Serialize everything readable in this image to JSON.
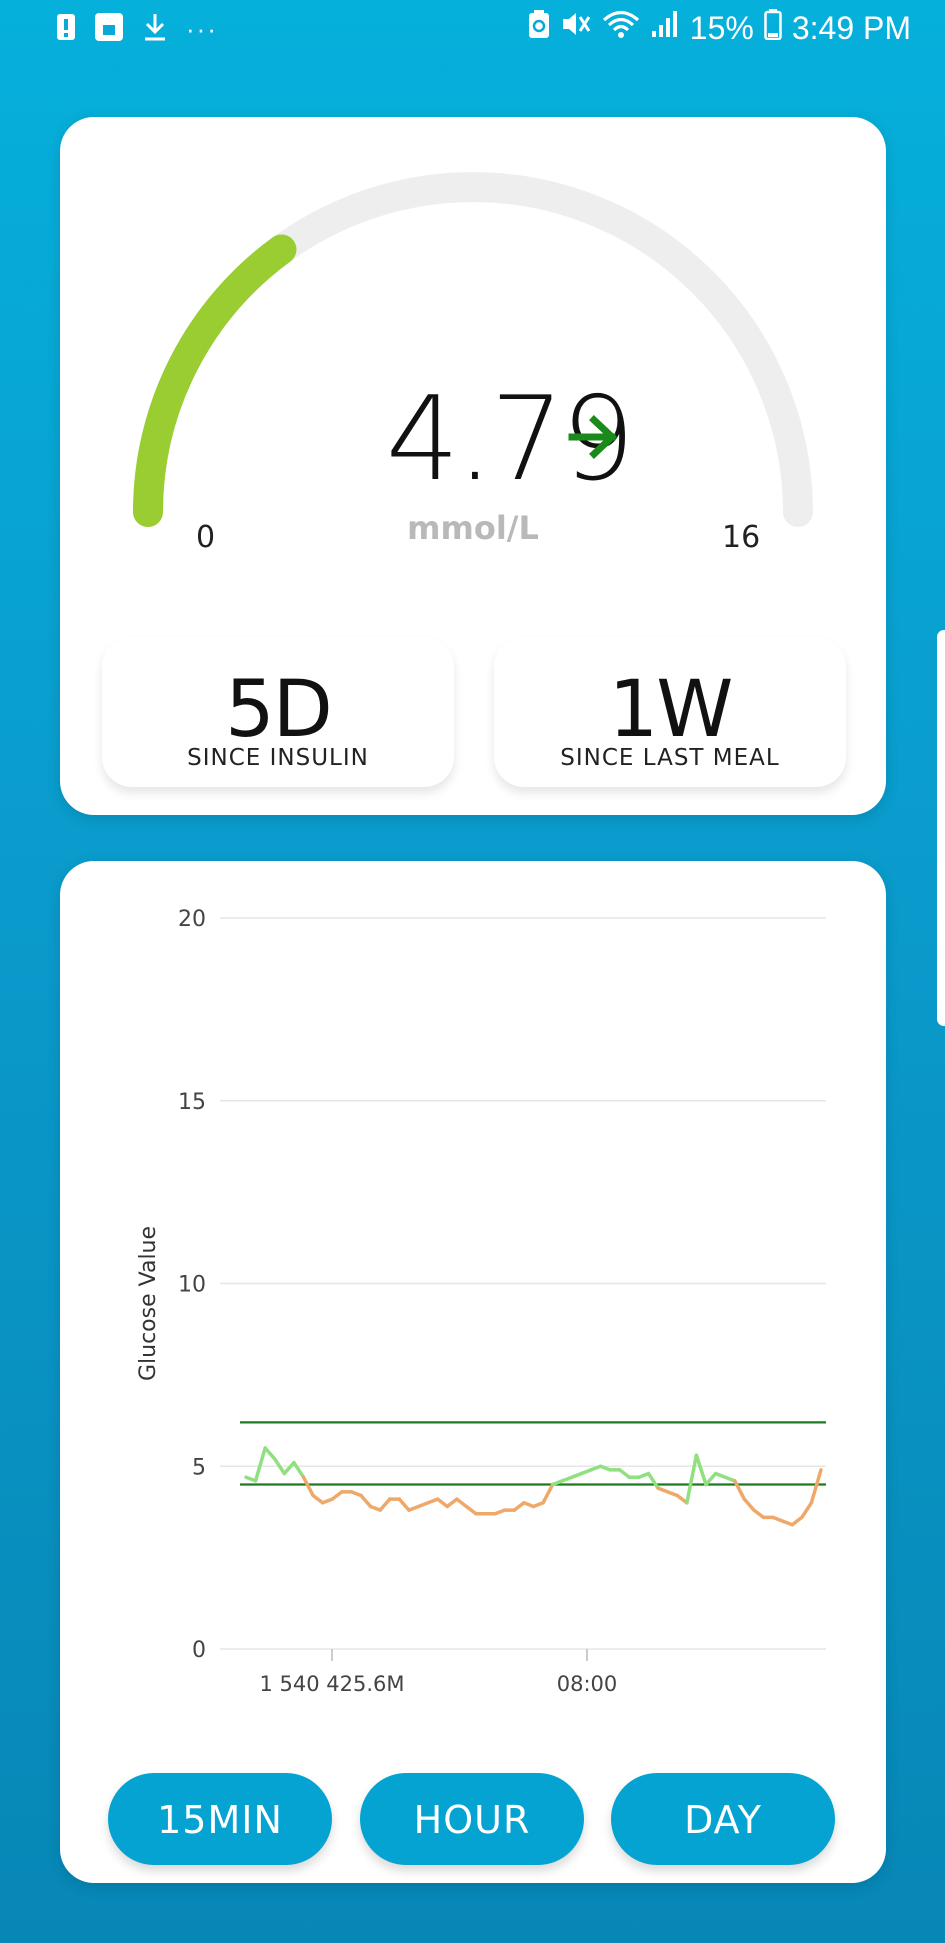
{
  "status_bar": {
    "left_icons": [
      "alert-icon",
      "sim-icon",
      "download-icon",
      "more-icon"
    ],
    "more_dots": "···",
    "battery_percent": "15%",
    "time": "3:49 PM",
    "right_icons": [
      "battery-saver-icon",
      "mute-icon",
      "wifi-icon",
      "signal-icon",
      "battery-icon"
    ]
  },
  "gauge": {
    "value": "4.79",
    "unit": "mmol/L",
    "min_label": "0",
    "max_label": "16",
    "min": 0,
    "max": 16,
    "level": 4.79,
    "trend": "steady",
    "trend_icon": "arrow-right-icon",
    "colors": {
      "fill": "#9acd32",
      "track": "#eeeeee",
      "trend": "#1a8a1a"
    }
  },
  "tiles": [
    {
      "value": "5D",
      "label": "SINCE INSULIN"
    },
    {
      "value": "1W",
      "label": "SINCE LAST MEAL"
    }
  ],
  "chart_data": {
    "type": "line",
    "ylabel": "Glucose Value",
    "ylim": [
      0,
      20
    ],
    "y_ticks": [
      "0",
      "5",
      "10",
      "15",
      "20"
    ],
    "x_tick_labels": [
      "1 540 425.6M",
      "08:00"
    ],
    "reference_lines": [
      4.5,
      6.2
    ],
    "grid": true,
    "colors": {
      "in_range": "#90e080",
      "low": "#eea86a",
      "reference": "#1e7a1e",
      "grid": "#e6e6e6"
    },
    "series": [
      {
        "values": [
          4.7,
          4.6,
          5.5,
          5.2,
          4.8,
          5.1,
          4.7,
          4.2,
          4.0,
          4.1,
          4.3,
          4.3,
          4.2,
          3.9,
          3.8,
          4.1,
          4.1,
          3.8,
          3.9,
          4.0,
          4.1,
          3.9,
          4.1,
          3.9,
          3.7,
          3.7,
          3.7,
          3.8,
          3.8,
          4.0,
          3.9,
          4.0,
          4.5,
          4.6,
          4.7,
          4.8,
          4.9,
          5.0,
          4.9,
          4.9,
          4.7,
          4.7,
          4.8,
          4.4,
          4.3,
          4.2,
          4.0,
          5.3,
          4.5,
          4.8,
          4.7,
          4.6,
          4.1,
          3.8,
          3.6,
          3.6,
          3.5,
          3.4,
          3.6,
          4.0,
          4.9
        ]
      }
    ]
  },
  "buttons": {
    "min15": "15MIN",
    "hour": "HOUR",
    "day": "DAY"
  }
}
